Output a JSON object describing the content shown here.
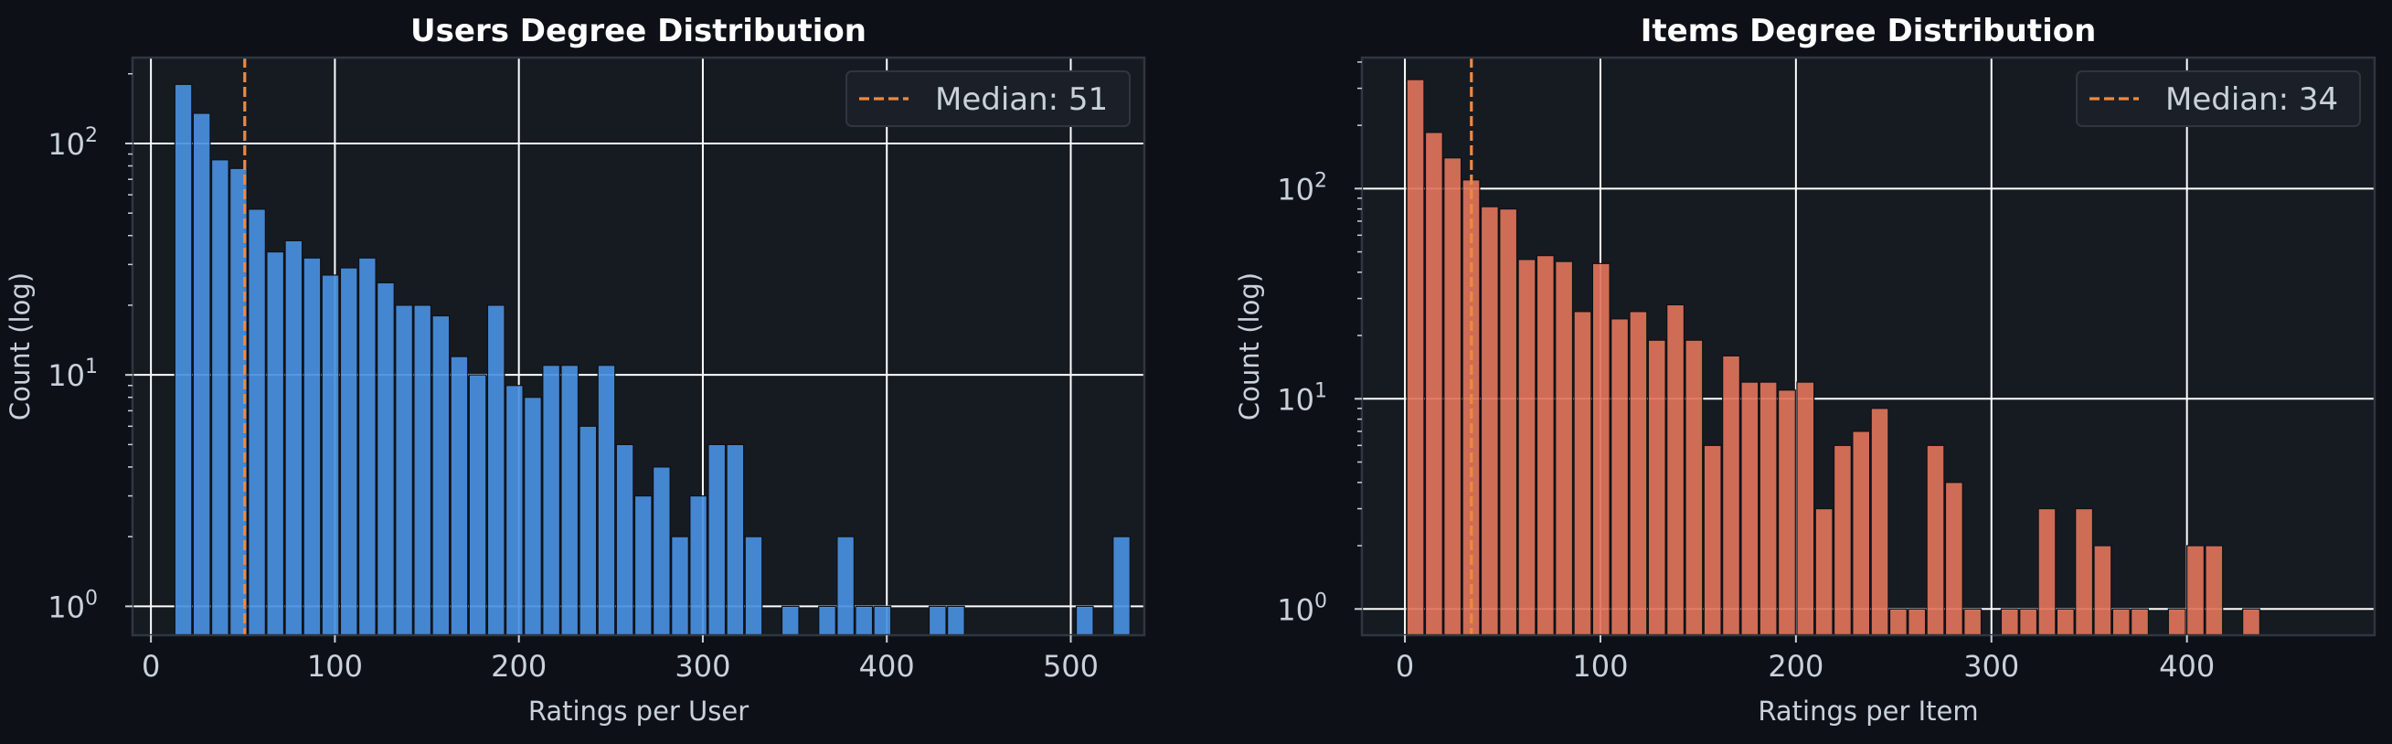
{
  "chart_data": [
    {
      "type": "bar",
      "title": "Users Degree Distribution",
      "xlabel": "Ratings per User",
      "ylabel": "Count (log)",
      "yscale": "log",
      "xlim": [
        -10,
        540
      ],
      "ylim": [
        0.75,
        235
      ],
      "xticks": [
        0,
        100,
        200,
        300,
        400,
        500
      ],
      "yticks": [
        {
          "base": "10",
          "exp": "0",
          "value": 1
        },
        {
          "base": "10",
          "exp": "1",
          "value": 10
        },
        {
          "base": "10",
          "exp": "2",
          "value": 100
        }
      ],
      "bar_color": "#4a8fe0",
      "bin_start": 13,
      "bin_width": 10,
      "values": [
        180,
        135,
        85,
        78,
        52,
        34,
        38,
        32,
        27,
        29,
        32,
        25,
        20,
        20,
        18,
        12,
        10,
        20,
        9,
        8,
        11,
        11,
        6,
        11,
        5,
        3,
        4,
        2,
        3,
        5,
        5,
        2,
        0,
        1,
        0,
        1,
        2,
        1,
        1,
        0,
        0,
        1,
        1,
        0,
        0,
        0,
        0,
        0,
        0,
        1,
        0,
        2
      ],
      "grid": true,
      "legend_position": "top-right",
      "median": {
        "value": 51,
        "label": "Median: 51",
        "color": "#f0883e"
      }
    },
    {
      "type": "bar",
      "title": "Items Degree Distribution",
      "xlabel": "Ratings per Item",
      "ylabel": "Count (log)",
      "yscale": "log",
      "xlim": [
        -22,
        496
      ],
      "ylim": [
        0.75,
        420
      ],
      "xticks": [
        0,
        100,
        200,
        300,
        400
      ],
      "yticks": [
        {
          "base": "10",
          "exp": "0",
          "value": 1
        },
        {
          "base": "10",
          "exp": "1",
          "value": 10
        },
        {
          "base": "10",
          "exp": "2",
          "value": 100
        }
      ],
      "bar_color": "#e0735a",
      "bin_start": 1,
      "bin_width": 9.5,
      "values": [
        330,
        185,
        140,
        110,
        82,
        80,
        46,
        48,
        45,
        26,
        44,
        24,
        26,
        19,
        28,
        19,
        6,
        16,
        12,
        12,
        11,
        12,
        3,
        6,
        7,
        9,
        1,
        1,
        6,
        4,
        1,
        0,
        1,
        1,
        3,
        1,
        3,
        2,
        1,
        1,
        0,
        1,
        2,
        2,
        0,
        1,
        0,
        0,
        0,
        0,
        0,
        0,
        0,
        0,
        0,
        0,
        0,
        0,
        0,
        0,
        0,
        0,
        0,
        0,
        0,
        0,
        0,
        0,
        0,
        0,
        0,
        0,
        0,
        0,
        0,
        0,
        0,
        0,
        0
      ],
      "grid": true,
      "legend_position": "top-right",
      "median": {
        "value": 34,
        "label": "Median: 34",
        "color": "#f0883e"
      }
    }
  ]
}
